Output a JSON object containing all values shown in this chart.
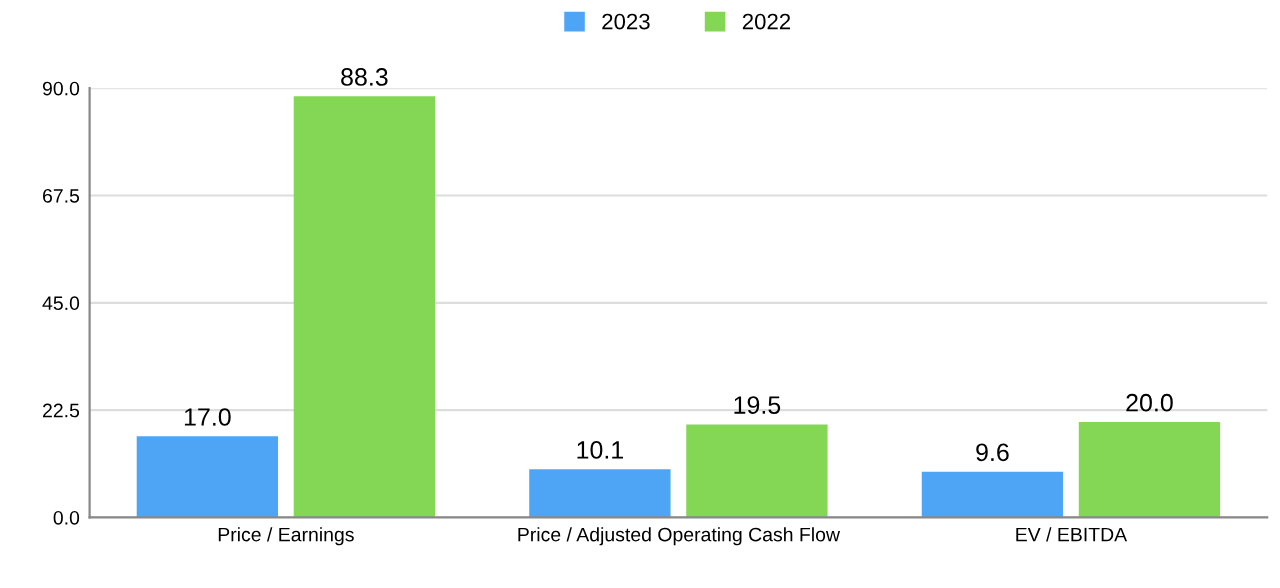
{
  "chart_data": {
    "type": "bar",
    "categories": [
      "Price / Earnings",
      "Price / Adjusted Operating Cash Flow",
      "EV / EBITDA"
    ],
    "series": [
      {
        "name": "2023",
        "color": "#4ea5f6",
        "values": [
          17.0,
          10.1,
          9.6
        ],
        "value_labels": [
          "17.0",
          "10.1",
          "9.6"
        ]
      },
      {
        "name": "2022",
        "color": "#84d655",
        "values": [
          88.3,
          19.5,
          20.0
        ],
        "value_labels": [
          "88.3",
          "19.5",
          "20.0"
        ]
      }
    ],
    "ylim": [
      0,
      90
    ],
    "yticks": [
      {
        "value": 0,
        "label": "0.0"
      },
      {
        "value": 22.5,
        "label": "22.5"
      },
      {
        "value": 45,
        "label": "45.0"
      },
      {
        "value": 67.5,
        "label": "67.5"
      },
      {
        "value": 90,
        "label": "90.0"
      }
    ],
    "grid": "y",
    "legend": "top"
  }
}
